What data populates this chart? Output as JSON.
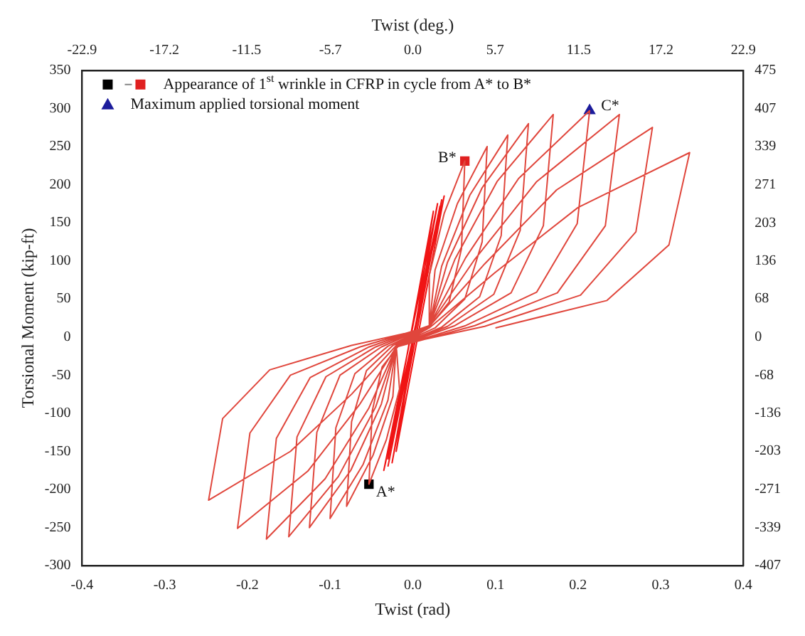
{
  "chart_data": {
    "type": "line",
    "xlabel": "Twist (rad)",
    "x2label": "Twist (deg.)",
    "ylabel": "Torsional Moment (kip-ft)",
    "xlim": [
      -0.4,
      0.4
    ],
    "xticks": [
      -0.4,
      -0.3,
      -0.2,
      -0.1,
      {
        "value": 0,
        "label": "0.0"
      },
      0.1,
      0.2,
      0.3,
      0.4
    ],
    "x2lim": [
      -22.9,
      22.9
    ],
    "x2ticks": [
      -22.9,
      -17.2,
      -11.5,
      -5.7,
      {
        "value": 0,
        "label": "0.0"
      },
      5.7,
      11.5,
      17.2,
      22.9
    ],
    "ylim": [
      -300,
      350
    ],
    "yticks": [
      -300,
      -250,
      -200,
      -150,
      -100,
      -50,
      0,
      50,
      100,
      150,
      200,
      250,
      300,
      350
    ],
    "y2lim": [
      -407,
      475
    ],
    "y2ticks": [
      -407,
      -339,
      -271,
      -203,
      -136,
      -68,
      0,
      68,
      136,
      203,
      271,
      339,
      407,
      475
    ],
    "legend": "top left",
    "line_style": "solid",
    "annotations": [
      {
        "text": "A*",
        "x": -0.053,
        "y": -193
      },
      {
        "text": "B*",
        "x": 0.063,
        "y": 231
      },
      {
        "text": "C*",
        "x": 0.214,
        "y": 297
      }
    ],
    "series": [
      {
        "color": "#e0463c",
        "marker": "none",
        "x": [
          0,
          0.02,
          0.02,
          0.038,
          0.063,
          0.059,
          0.044,
          0.019,
          -0.02,
          -0.016,
          -0.032,
          -0.053,
          -0.049,
          -0.037,
          -0.016,
          0.02,
          0.027,
          0.054,
          0.09,
          0.084,
          0.063,
          0.027,
          -0.02,
          -0.024,
          -0.048,
          -0.08,
          -0.074,
          -0.056,
          -0.024,
          0.02,
          0.035,
          0.069,
          0.115,
          0.107,
          0.081,
          0.035,
          -0.02,
          -0.03,
          -0.06,
          -0.1,
          -0.093,
          -0.07,
          -0.03,
          0.02,
          0.042,
          0.084,
          0.14,
          0.13,
          0.098,
          0.042,
          -0.02,
          -0.038,
          -0.075,
          -0.125,
          -0.116,
          -0.088,
          -0.038,
          0.02,
          0.051,
          0.102,
          0.17,
          0.158,
          0.119,
          0.051,
          -0.02,
          -0.045,
          -0.09,
          -0.15,
          -0.14,
          -0.105,
          -0.045,
          0.02,
          0.064,
          0.128,
          0.214,
          0.199,
          0.15,
          0.064,
          -0.02,
          -0.053,
          -0.106,
          -0.177,
          -0.165,
          -0.124,
          -0.053,
          0.02,
          0.075,
          0.15,
          0.25,
          0.233,
          0.175,
          0.075,
          -0.02,
          -0.064,
          -0.127,
          -0.212,
          -0.197,
          -0.148,
          -0.064,
          0.02,
          0.087,
          0.174,
          0.29,
          0.27,
          0.203,
          0.087,
          -0.02,
          -0.074,
          -0.148,
          -0.247,
          -0.23,
          -0.173,
          -0.074,
          0.02,
          0.1,
          0.2,
          0.335,
          0.31,
          0.235,
          0.1
        ],
        "values": [
          0,
          12,
          81,
          162,
          231,
          116,
          46,
          12,
          -10,
          -68,
          -135,
          -193,
          -97,
          -39,
          -10,
          12,
          88,
          175,
          250,
          125,
          50,
          12,
          -11,
          -78,
          -155,
          -222,
          -111,
          -44,
          -11,
          13,
          93,
          186,
          265,
          133,
          53,
          13,
          -12,
          -83,
          -167,
          -238,
          -119,
          -48,
          -12,
          14,
          98,
          196,
          280,
          140,
          56,
          14,
          -13,
          -88,
          -175,
          -250,
          -125,
          -50,
          -13,
          15,
          102,
          204,
          292,
          146,
          58,
          15,
          -13,
          -92,
          -183,
          -262,
          -131,
          -52,
          -13,
          15,
          104,
          208,
          297,
          149,
          59,
          15,
          -13,
          -93,
          -186,
          -265,
          -133,
          -53,
          -13,
          15,
          102,
          204,
          292,
          146,
          58,
          15,
          -13,
          -88,
          -176,
          -251,
          -126,
          -50,
          -13,
          14,
          96,
          193,
          275,
          138,
          55,
          14,
          -11,
          -75,
          -150,
          -214,
          -107,
          -43,
          -11,
          12,
          85,
          170,
          242,
          121,
          48,
          12
        ]
      },
      {
        "color": "#f01414",
        "marker": "none",
        "x": [
          -0.03,
          0.035,
          -0.025,
          0.03,
          -0.035,
          0.038,
          -0.02,
          0.025,
          -0.03,
          0.033
        ],
        "values": [
          -170,
          180,
          -165,
          175,
          -175,
          185,
          -150,
          165,
          -160,
          172
        ]
      },
      {
        "type": "scatter",
        "name": "Appearance of 1$^{st}$ wrinkle in CFRP in cycle from A* to B*",
        "colors": [
          "#000000",
          "#e02020"
        ],
        "marker": "square",
        "x": [
          -0.053,
          0.063
        ],
        "values": [
          -193,
          231
        ]
      },
      {
        "type": "scatter",
        "name": "Maximum applied torsional moment",
        "color": "#1c1c9c",
        "marker": "triangle",
        "x": [
          0.214
        ],
        "values": [
          297
        ]
      }
    ]
  }
}
